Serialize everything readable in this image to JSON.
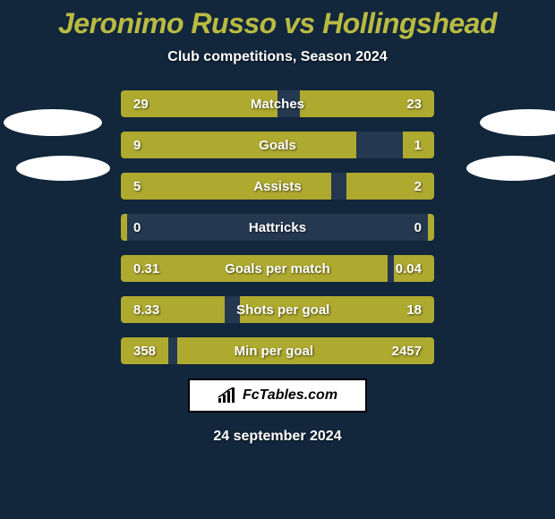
{
  "background_color": "#12263c",
  "title": {
    "text": "Jeronimo Russo vs Hollingshead",
    "color": "#b9bb41"
  },
  "subtitle": {
    "text": "Club competitions, Season 2024",
    "color": "#ffffff"
  },
  "stats": {
    "row_bg": "#243850",
    "left_bar_color": "#aea92f",
    "right_bar_color": "#aea92f",
    "label_color": "#ffffff",
    "value_color": "#ffffff",
    "rows": [
      {
        "label": "Matches",
        "left_val": "29",
        "right_val": "23",
        "left_pct": 50,
        "right_pct": 43
      },
      {
        "label": "Goals",
        "left_val": "9",
        "right_val": "1",
        "left_pct": 75,
        "right_pct": 10
      },
      {
        "label": "Assists",
        "left_val": "5",
        "right_val": "2",
        "left_pct": 67,
        "right_pct": 28
      },
      {
        "label": "Hattricks",
        "left_val": "0",
        "right_val": "0",
        "left_pct": 2,
        "right_pct": 2
      },
      {
        "label": "Goals per match",
        "left_val": "0.31",
        "right_val": "0.04",
        "left_pct": 85,
        "right_pct": 13
      },
      {
        "label": "Shots per goal",
        "left_val": "8.33",
        "right_val": "18",
        "left_pct": 33,
        "right_pct": 62
      },
      {
        "label": "Min per goal",
        "left_val": "358",
        "right_val": "2457",
        "left_pct": 15,
        "right_pct": 82
      }
    ]
  },
  "footer": {
    "brand": "FcTables.com",
    "date": "24 september 2024",
    "date_color": "#ffffff"
  }
}
